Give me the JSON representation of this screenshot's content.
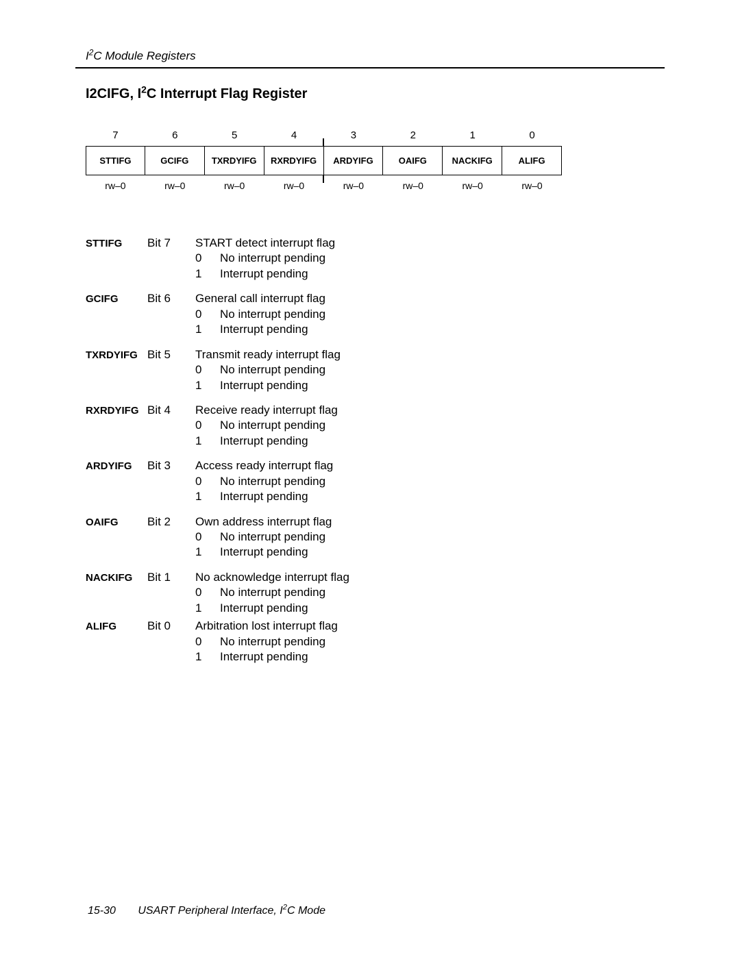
{
  "header": {
    "section": "I",
    "section_sup": "2",
    "section_rest": "C Module Registers"
  },
  "title": {
    "pre": "I2CIFG, I",
    "sup": "2",
    "post": "C Interrupt Flag Register"
  },
  "register": {
    "bits": [
      "7",
      "6",
      "5",
      "4",
      "3",
      "2",
      "1",
      "0"
    ],
    "fields": [
      "STTIFG",
      "GCIFG",
      "TXRDYIFG",
      "RXRDYIFG",
      "ARDYIFG",
      "OAIFG",
      "NACKIFG",
      "ALIFG"
    ],
    "reset": [
      "rw–0",
      "rw–0",
      "rw–0",
      "rw–0",
      "rw–0",
      "rw–0",
      "rw–0",
      "rw–0"
    ]
  },
  "descs": [
    {
      "name": "STTIFG",
      "bit": "Bit 7",
      "summary": "START detect interrupt flag",
      "opts": [
        [
          "0",
          "No interrupt pending"
        ],
        [
          "1",
          "Interrupt pending"
        ]
      ]
    },
    {
      "name": "GCIFG",
      "bit": "Bit 6",
      "summary": "General call interrupt flag",
      "opts": [
        [
          "0",
          "No interrupt pending"
        ],
        [
          "1",
          "Interrupt pending"
        ]
      ]
    },
    {
      "name": "TXRDYIFG",
      "bit": "Bit 5",
      "summary": "Transmit ready interrupt flag",
      "opts": [
        [
          "0",
          "No interrupt pending"
        ],
        [
          "1",
          "Interrupt pending"
        ]
      ]
    },
    {
      "name": "RXRDYIFG",
      "bit": "Bit 4",
      "summary": "Receive ready interrupt flag",
      "opts": [
        [
          "0",
          "No interrupt pending"
        ],
        [
          "1",
          "Interrupt pending"
        ]
      ]
    },
    {
      "name": "ARDYIFG",
      "bit": "Bit 3",
      "summary": "Access ready interrupt flag",
      "opts": [
        [
          "0",
          "No interrupt pending"
        ],
        [
          "1",
          "Interrupt pending"
        ]
      ]
    },
    {
      "name": "OAIFG",
      "bit": "Bit 2",
      "summary": "Own address interrupt flag",
      "opts": [
        [
          "0",
          "No interrupt pending"
        ],
        [
          "1",
          "Interrupt pending"
        ]
      ]
    },
    {
      "name": "NACKIFG",
      "bit": "Bit 1",
      "summary": "No acknowledge interrupt flag",
      "opts": [
        [
          "0",
          "No interrupt pending"
        ],
        [
          "1",
          "Interrupt pending"
        ]
      ]
    },
    {
      "name": "ALIFG",
      "bit": "Bit 0",
      "summary": "Arbitration lost interrupt flag",
      "opts": [
        [
          "0",
          "No interrupt pending"
        ],
        [
          "1",
          "Interrupt pending"
        ]
      ]
    }
  ],
  "footer": {
    "page": "15-30",
    "text_pre": "USART Peripheral Interface, I",
    "text_sup": "2",
    "text_post": "C Mode"
  }
}
